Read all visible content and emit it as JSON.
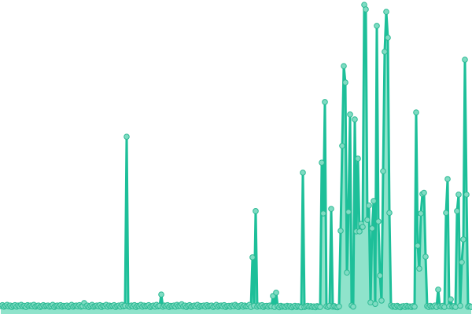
{
  "chart_data": {
    "type": "area",
    "title": "",
    "xlabel": "",
    "ylabel": "",
    "grid": false,
    "axes_visible": false,
    "ylim": [
      0,
      100
    ],
    "colors": {
      "line": "#1dbf99",
      "fill": "#8fe3cb",
      "marker_fill": "#7fdcc3",
      "marker_stroke": "#2bb993"
    },
    "series": [
      {
        "values": [
          0.8,
          1.1,
          0.6,
          0.9,
          1.2,
          0.7,
          1.0,
          0.5,
          0.9,
          1.1,
          0.6,
          1.0,
          0.8,
          1.2,
          0.7,
          0.9,
          0.5,
          1.1,
          0.8,
          1.0,
          0.7,
          1.2,
          0.6,
          0.9,
          1.0,
          0.5,
          0.8,
          1.1,
          0.7,
          0.9,
          1.0,
          0.6,
          0.8,
          1.2,
          0.5,
          0.9,
          1.0,
          0.7,
          1.1,
          0.6,
          0.9,
          0.7,
          1.0,
          0.5,
          0.8,
          1.2,
          0.6,
          0.9,
          1.0,
          0.7,
          1.1,
          0.6,
          0.8,
          1.8,
          0.7,
          1.0,
          0.5,
          0.9,
          1.2,
          0.6,
          0.8,
          1.0,
          0.7,
          1.1,
          0.5,
          0.9,
          0.8,
          1.2,
          0.6,
          1.0,
          0.7,
          0.9,
          1.1,
          0.5,
          0.8,
          1.0,
          0.6,
          1.2,
          0.7,
          0.9,
          56.4,
          0.8,
          0.6,
          1.0,
          0.7,
          1.1,
          0.5,
          0.9,
          0.8,
          1.2,
          0.6,
          1.0,
          0.7,
          0.9,
          1.1,
          0.5,
          0.8,
          1.0,
          0.6,
          1.2,
          0.7,
          0.9,
          4.6,
          0.6,
          1.0,
          0.8,
          1.1,
          0.5,
          0.9,
          0.7,
          1.0,
          0.6,
          1.2,
          0.8,
          0.9,
          1.4,
          0.7,
          1.0,
          0.5,
          0.9,
          1.1,
          0.6,
          0.8,
          1.0,
          0.7,
          1.2,
          0.5,
          0.9,
          0.8,
          1.0,
          0.6,
          1.1,
          0.7,
          0.9,
          1.0,
          0.5,
          0.8,
          1.2,
          0.6,
          0.9,
          1.0,
          0.7,
          1.1,
          0.5,
          0.8,
          0.9,
          0.6,
          1.0,
          0.7,
          1.2,
          0.8,
          0.5,
          0.9,
          1.1,
          0.6,
          1.0,
          0.7,
          0.8,
          1.2,
          0.5,
          16.8,
          0.9,
          32.0,
          0.6,
          1.0,
          0.7,
          1.1,
          0.5,
          0.8,
          0.9,
          0.6,
          1.0,
          0.7,
          4.1,
          0.5,
          5.2,
          0.8,
          0.4,
          0.9,
          0.6,
          0.7,
          0.5,
          0.9,
          0.6,
          0.8,
          0.4,
          0.7,
          0.9,
          0.5,
          0.8,
          0.6,
          0.4,
          44.6,
          0.5,
          0.7,
          0.9,
          0.6,
          0.8,
          0.5,
          0.7,
          0.4,
          0.8,
          0.6,
          0.5,
          47.9,
          31.2,
          67.8,
          0.7,
          0.5,
          0.9,
          32.7,
          0.6,
          0.8,
          0.5,
          0.4,
          0.7,
          25.5,
          53.4,
          79.6,
          74.2,
          11.8,
          31.7,
          63.7,
          1.0,
          0.6,
          62.1,
          25.3,
          49.2,
          25.3,
          27.8,
          26.8,
          99.7,
          98.2,
          29.1,
          33.8,
          2.0,
          26.3,
          35.3,
          1.5,
          92.8,
          28.6,
          10.8,
          2.6,
          45.1,
          84.3,
          97.4,
          88.9,
          31.4,
          1.0,
          0.6,
          0.8,
          0.5,
          0.9,
          0.6,
          0.4,
          0.7,
          0.8,
          0.5,
          0.9,
          0.6,
          0.7,
          0.5,
          0.8,
          0.6,
          64.4,
          20.6,
          13.1,
          31.2,
          37.6,
          38.0,
          17.0,
          0.8,
          0.5,
          0.9,
          0.6,
          0.7,
          1.0,
          0.5,
          6.2,
          0.8,
          0.6,
          0.9,
          0.5,
          31.4,
          42.5,
          0.7,
          3.0,
          0.6,
          0.8,
          0.5,
          32.0,
          37.4,
          0.9,
          15.2,
          22.7,
          81.7,
          37.4,
          0.6,
          0.8,
          0.5
        ]
      }
    ]
  }
}
